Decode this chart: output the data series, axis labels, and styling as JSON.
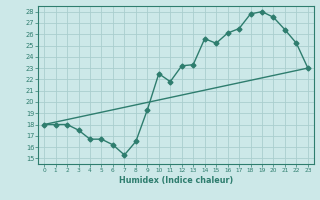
{
  "title": "",
  "xlabel": "Humidex (Indice chaleur)",
  "xlim": [
    -0.5,
    23.5
  ],
  "ylim": [
    14.5,
    28.5
  ],
  "xticks": [
    0,
    1,
    2,
    3,
    4,
    5,
    6,
    7,
    8,
    9,
    10,
    11,
    12,
    13,
    14,
    15,
    16,
    17,
    18,
    19,
    20,
    21,
    22,
    23
  ],
  "yticks": [
    15,
    16,
    17,
    18,
    19,
    20,
    21,
    22,
    23,
    24,
    25,
    26,
    27,
    28
  ],
  "line1_x": [
    0,
    1,
    2,
    3,
    4,
    5,
    6,
    7,
    8,
    9,
    10,
    11,
    12,
    13,
    14,
    15,
    16,
    17,
    18,
    19,
    20,
    21,
    22,
    23
  ],
  "line1_y": [
    18,
    18,
    18,
    17.5,
    16.7,
    16.7,
    16.2,
    15.3,
    16.5,
    19.3,
    22.5,
    21.8,
    23.2,
    23.3,
    25.6,
    25.2,
    26.1,
    26.5,
    27.8,
    28.0,
    27.5,
    26.4,
    25.2,
    23.0
  ],
  "line2_x": [
    0,
    23
  ],
  "line2_y": [
    18,
    23
  ],
  "line_color": "#2e7d6e",
  "bg_color": "#cce8e8",
  "grid_color": "#aacece",
  "marker": "D",
  "marker_size": 2.5,
  "line_width": 1.0
}
